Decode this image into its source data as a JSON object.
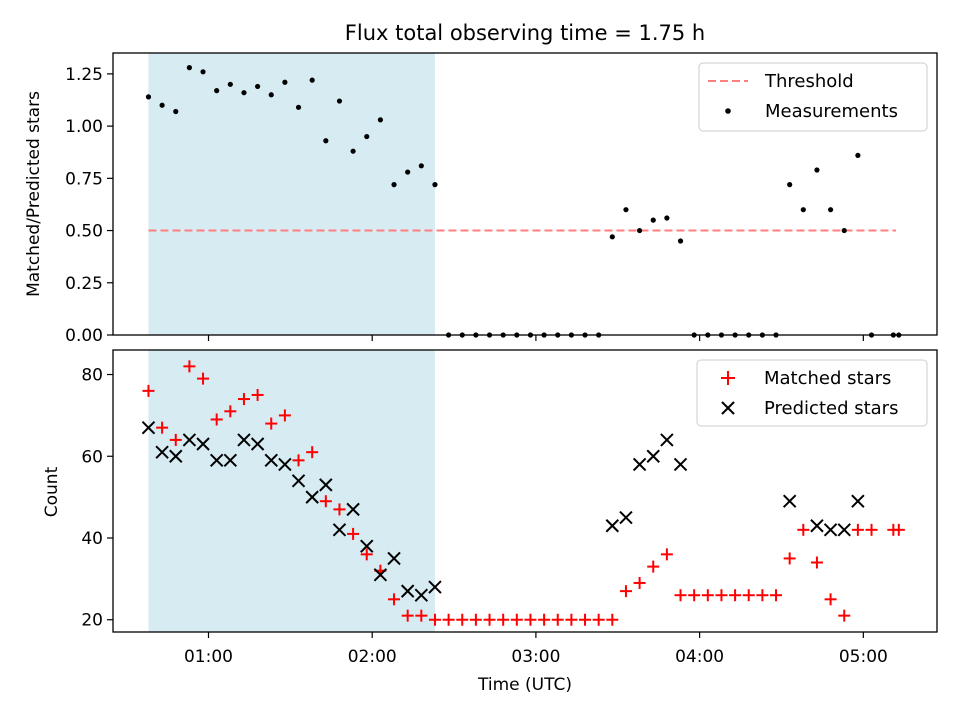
{
  "chart_data": {
    "title": "Flux total observing time = 1.75 h",
    "xlabel": "Time (UTC)",
    "type": "scatter",
    "x_unit": "minutes after 00:00 UTC",
    "xlim": [
      25,
      327
    ],
    "xticks": [
      {
        "value": 60,
        "label": "01:00"
      },
      {
        "value": 120,
        "label": "02:00"
      },
      {
        "value": 180,
        "label": "03:00"
      },
      {
        "value": 240,
        "label": "04:00"
      },
      {
        "value": 300,
        "label": "05:00"
      }
    ],
    "highlight_span": {
      "start": 38,
      "end": 143,
      "color": "#add8e6"
    },
    "panels": [
      {
        "id": "ratio",
        "ylabel": "Matched/Predicted stars",
        "ylim": [
          0,
          1.35
        ],
        "yticks": [
          {
            "value": 0,
            "label": "0.00"
          },
          {
            "value": 0.25,
            "label": "0.25"
          },
          {
            "value": 0.5,
            "label": "0.50"
          },
          {
            "value": 0.75,
            "label": "0.75"
          },
          {
            "value": 1.0,
            "label": "1.00"
          },
          {
            "value": 1.25,
            "label": "1.25"
          }
        ],
        "threshold": {
          "name": "Threshold",
          "value": 0.5,
          "x_start": 38,
          "x_end": 312,
          "color": "#ff7f7f"
        },
        "legend": {
          "position": "top-right",
          "entries": [
            "Threshold",
            "Measurements"
          ]
        },
        "series": [
          {
            "name": "Measurements",
            "marker": "dot",
            "color": "#000000",
            "points": [
              [
                38,
                1.14
              ],
              [
                43,
                1.1
              ],
              [
                48,
                1.07
              ],
              [
                53,
                1.28
              ],
              [
                58,
                1.26
              ],
              [
                63,
                1.17
              ],
              [
                68,
                1.2
              ],
              [
                73,
                1.16
              ],
              [
                78,
                1.19
              ],
              [
                83,
                1.15
              ],
              [
                88,
                1.21
              ],
              [
                93,
                1.09
              ],
              [
                98,
                1.22
              ],
              [
                103,
                0.93
              ],
              [
                108,
                1.12
              ],
              [
                113,
                0.88
              ],
              [
                118,
                0.95
              ],
              [
                123,
                1.03
              ],
              [
                128,
                0.72
              ],
              [
                133,
                0.78
              ],
              [
                138,
                0.81
              ],
              [
                143,
                0.72
              ],
              [
                148,
                0
              ],
              [
                153,
                0
              ],
              [
                158,
                0
              ],
              [
                163,
                0
              ],
              [
                168,
                0
              ],
              [
                173,
                0
              ],
              [
                178,
                0
              ],
              [
                183,
                0
              ],
              [
                188,
                0
              ],
              [
                193,
                0
              ],
              [
                198,
                0
              ],
              [
                203,
                0
              ],
              [
                208,
                0.47
              ],
              [
                213,
                0.6
              ],
              [
                218,
                0.5
              ],
              [
                223,
                0.55
              ],
              [
                228,
                0.56
              ],
              [
                233,
                0.45
              ],
              [
                238,
                0
              ],
              [
                243,
                0
              ],
              [
                248,
                0
              ],
              [
                253,
                0
              ],
              [
                258,
                0
              ],
              [
                263,
                0
              ],
              [
                268,
                0
              ],
              [
                273,
                0.72
              ],
              [
                278,
                0.6
              ],
              [
                283,
                0.79
              ],
              [
                288,
                0.6
              ],
              [
                293,
                0.5
              ],
              [
                298,
                0.86
              ],
              [
                303,
                0
              ],
              [
                311,
                0
              ],
              [
                313,
                0
              ]
            ]
          }
        ]
      },
      {
        "id": "count",
        "ylabel": "Count",
        "ylim": [
          17,
          86
        ],
        "yticks": [
          {
            "value": 20,
            "label": "20"
          },
          {
            "value": 40,
            "label": "40"
          },
          {
            "value": 60,
            "label": "60"
          },
          {
            "value": 80,
            "label": "80"
          }
        ],
        "legend": {
          "position": "top-right",
          "entries": [
            "Matched stars",
            "Predicted stars"
          ]
        },
        "series": [
          {
            "name": "Matched stars",
            "marker": "plus",
            "color": "#ff0000",
            "points": [
              [
                38,
                76
              ],
              [
                43,
                67
              ],
              [
                48,
                64
              ],
              [
                53,
                82
              ],
              [
                58,
                79
              ],
              [
                63,
                69
              ],
              [
                68,
                71
              ],
              [
                73,
                74
              ],
              [
                78,
                75
              ],
              [
                83,
                68
              ],
              [
                88,
                70
              ],
              [
                93,
                59
              ],
              [
                98,
                61
              ],
              [
                103,
                49
              ],
              [
                108,
                47
              ],
              [
                113,
                41
              ],
              [
                118,
                36
              ],
              [
                123,
                32
              ],
              [
                128,
                25
              ],
              [
                133,
                21
              ],
              [
                138,
                21
              ],
              [
                143,
                20
              ],
              [
                148,
                20
              ],
              [
                153,
                20
              ],
              [
                158,
                20
              ],
              [
                163,
                20
              ],
              [
                168,
                20
              ],
              [
                173,
                20
              ],
              [
                178,
                20
              ],
              [
                183,
                20
              ],
              [
                188,
                20
              ],
              [
                193,
                20
              ],
              [
                198,
                20
              ],
              [
                203,
                20
              ],
              [
                208,
                20
              ],
              [
                213,
                27
              ],
              [
                218,
                29
              ],
              [
                223,
                33
              ],
              [
                228,
                36
              ],
              [
                233,
                26
              ],
              [
                238,
                26
              ],
              [
                243,
                26
              ],
              [
                248,
                26
              ],
              [
                253,
                26
              ],
              [
                258,
                26
              ],
              [
                263,
                26
              ],
              [
                268,
                26
              ],
              [
                273,
                35
              ],
              [
                278,
                42
              ],
              [
                283,
                34
              ],
              [
                288,
                25
              ],
              [
                293,
                21
              ],
              [
                298,
                42
              ],
              [
                303,
                42
              ],
              [
                311,
                42
              ],
              [
                313,
                42
              ]
            ]
          },
          {
            "name": "Predicted stars",
            "marker": "x",
            "color": "#000000",
            "points": [
              [
                38,
                67
              ],
              [
                43,
                61
              ],
              [
                48,
                60
              ],
              [
                53,
                64
              ],
              [
                58,
                63
              ],
              [
                63,
                59
              ],
              [
                68,
                59
              ],
              [
                73,
                64
              ],
              [
                78,
                63
              ],
              [
                83,
                59
              ],
              [
                88,
                58
              ],
              [
                93,
                54
              ],
              [
                98,
                50
              ],
              [
                103,
                53
              ],
              [
                108,
                42
              ],
              [
                113,
                47
              ],
              [
                118,
                38
              ],
              [
                123,
                31
              ],
              [
                128,
                35
              ],
              [
                133,
                27
              ],
              [
                138,
                26
              ],
              [
                143,
                28
              ],
              [
                208,
                43
              ],
              [
                213,
                45
              ],
              [
                218,
                58
              ],
              [
                223,
                60
              ],
              [
                228,
                64
              ],
              [
                233,
                58
              ],
              [
                273,
                49
              ],
              [
                283,
                43
              ],
              [
                288,
                42
              ],
              [
                293,
                42
              ],
              [
                298,
                49
              ]
            ]
          }
        ]
      }
    ]
  }
}
